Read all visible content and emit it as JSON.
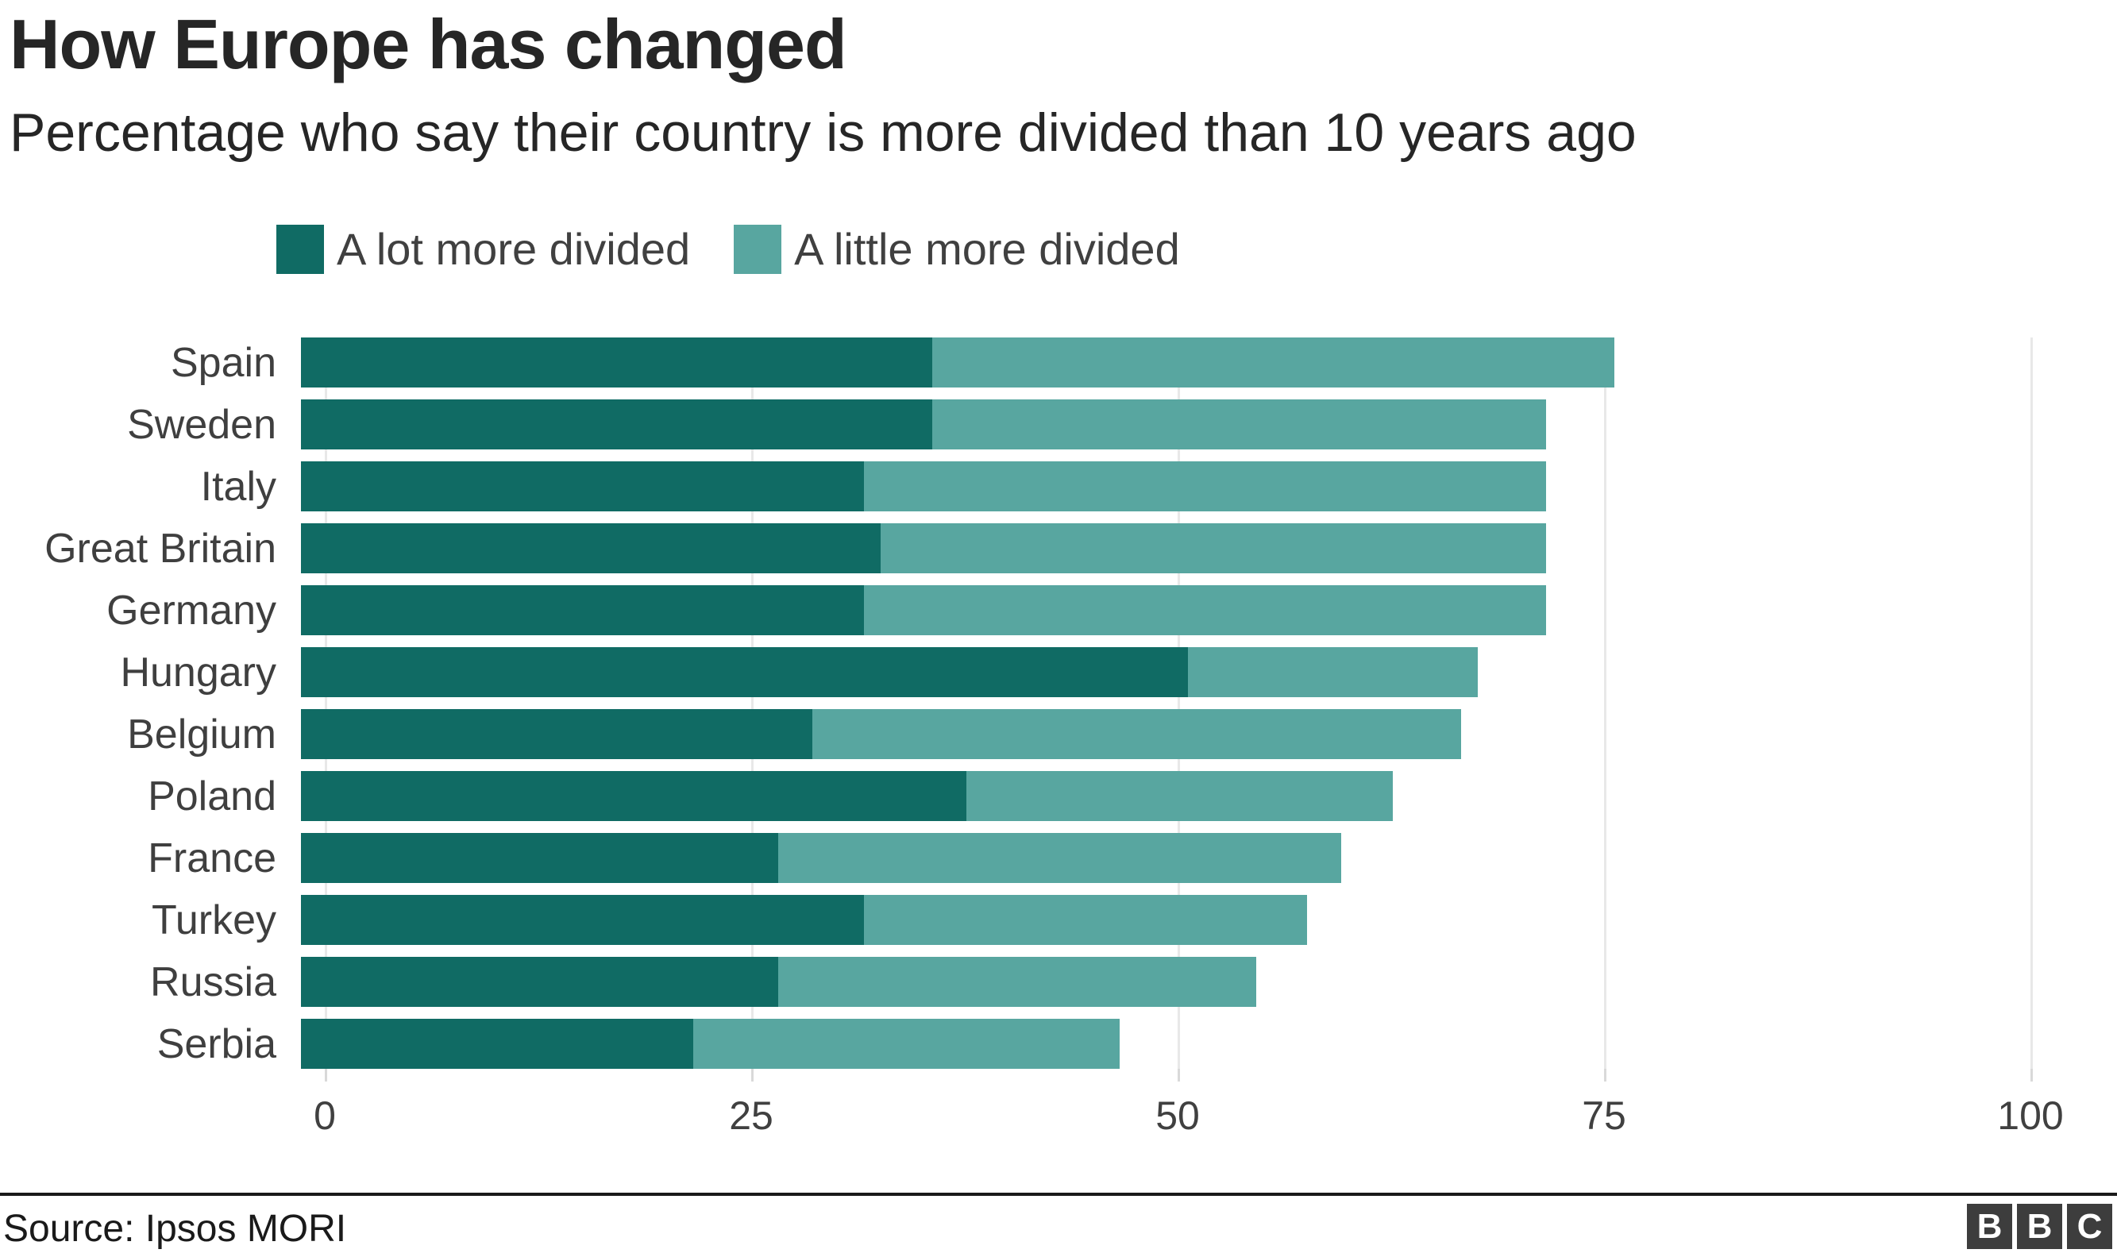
{
  "header": {
    "title": "How Europe has changed",
    "subtitle": "Percentage who say their country is more divided than 10 years ago"
  },
  "legend": {
    "items": [
      {
        "label": "A lot more divided",
        "color": "#106b64"
      },
      {
        "label": "A little more divided",
        "color": "#58a6a0"
      }
    ]
  },
  "chart_data": {
    "type": "bar",
    "orientation": "horizontal",
    "stacked": true,
    "title": "How Europe has changed",
    "subtitle": "Percentage who say their country is more divided than 10 years ago",
    "categories": [
      "Spain",
      "Sweden",
      "Italy",
      "Great Britain",
      "Germany",
      "Hungary",
      "Belgium",
      "Poland",
      "France",
      "Turkey",
      "Russia",
      "Serbia"
    ],
    "series": [
      {
        "name": "A lot more divided",
        "color": "#106b64",
        "values": [
          37,
          37,
          33,
          34,
          33,
          52,
          30,
          39,
          28,
          33,
          28,
          23
        ]
      },
      {
        "name": "A little more divided",
        "color": "#58a6a0",
        "values": [
          40,
          36,
          40,
          39,
          40,
          17,
          38,
          25,
          33,
          26,
          28,
          25
        ]
      }
    ],
    "totals": [
      77,
      73,
      73,
      73,
      73,
      69,
      68,
      64,
      61,
      59,
      56,
      48
    ],
    "x_ticks": [
      0,
      25,
      50,
      75,
      100
    ],
    "xlim": [
      0,
      100
    ],
    "grid": "vertical-light-gray",
    "legend_position": "top",
    "gridline_color": "#e8e8e8"
  },
  "footer": {
    "source": "Source: Ipsos MORI",
    "logo_letters": [
      "B",
      "B",
      "C"
    ],
    "logo_color": "#3d3d3d"
  }
}
